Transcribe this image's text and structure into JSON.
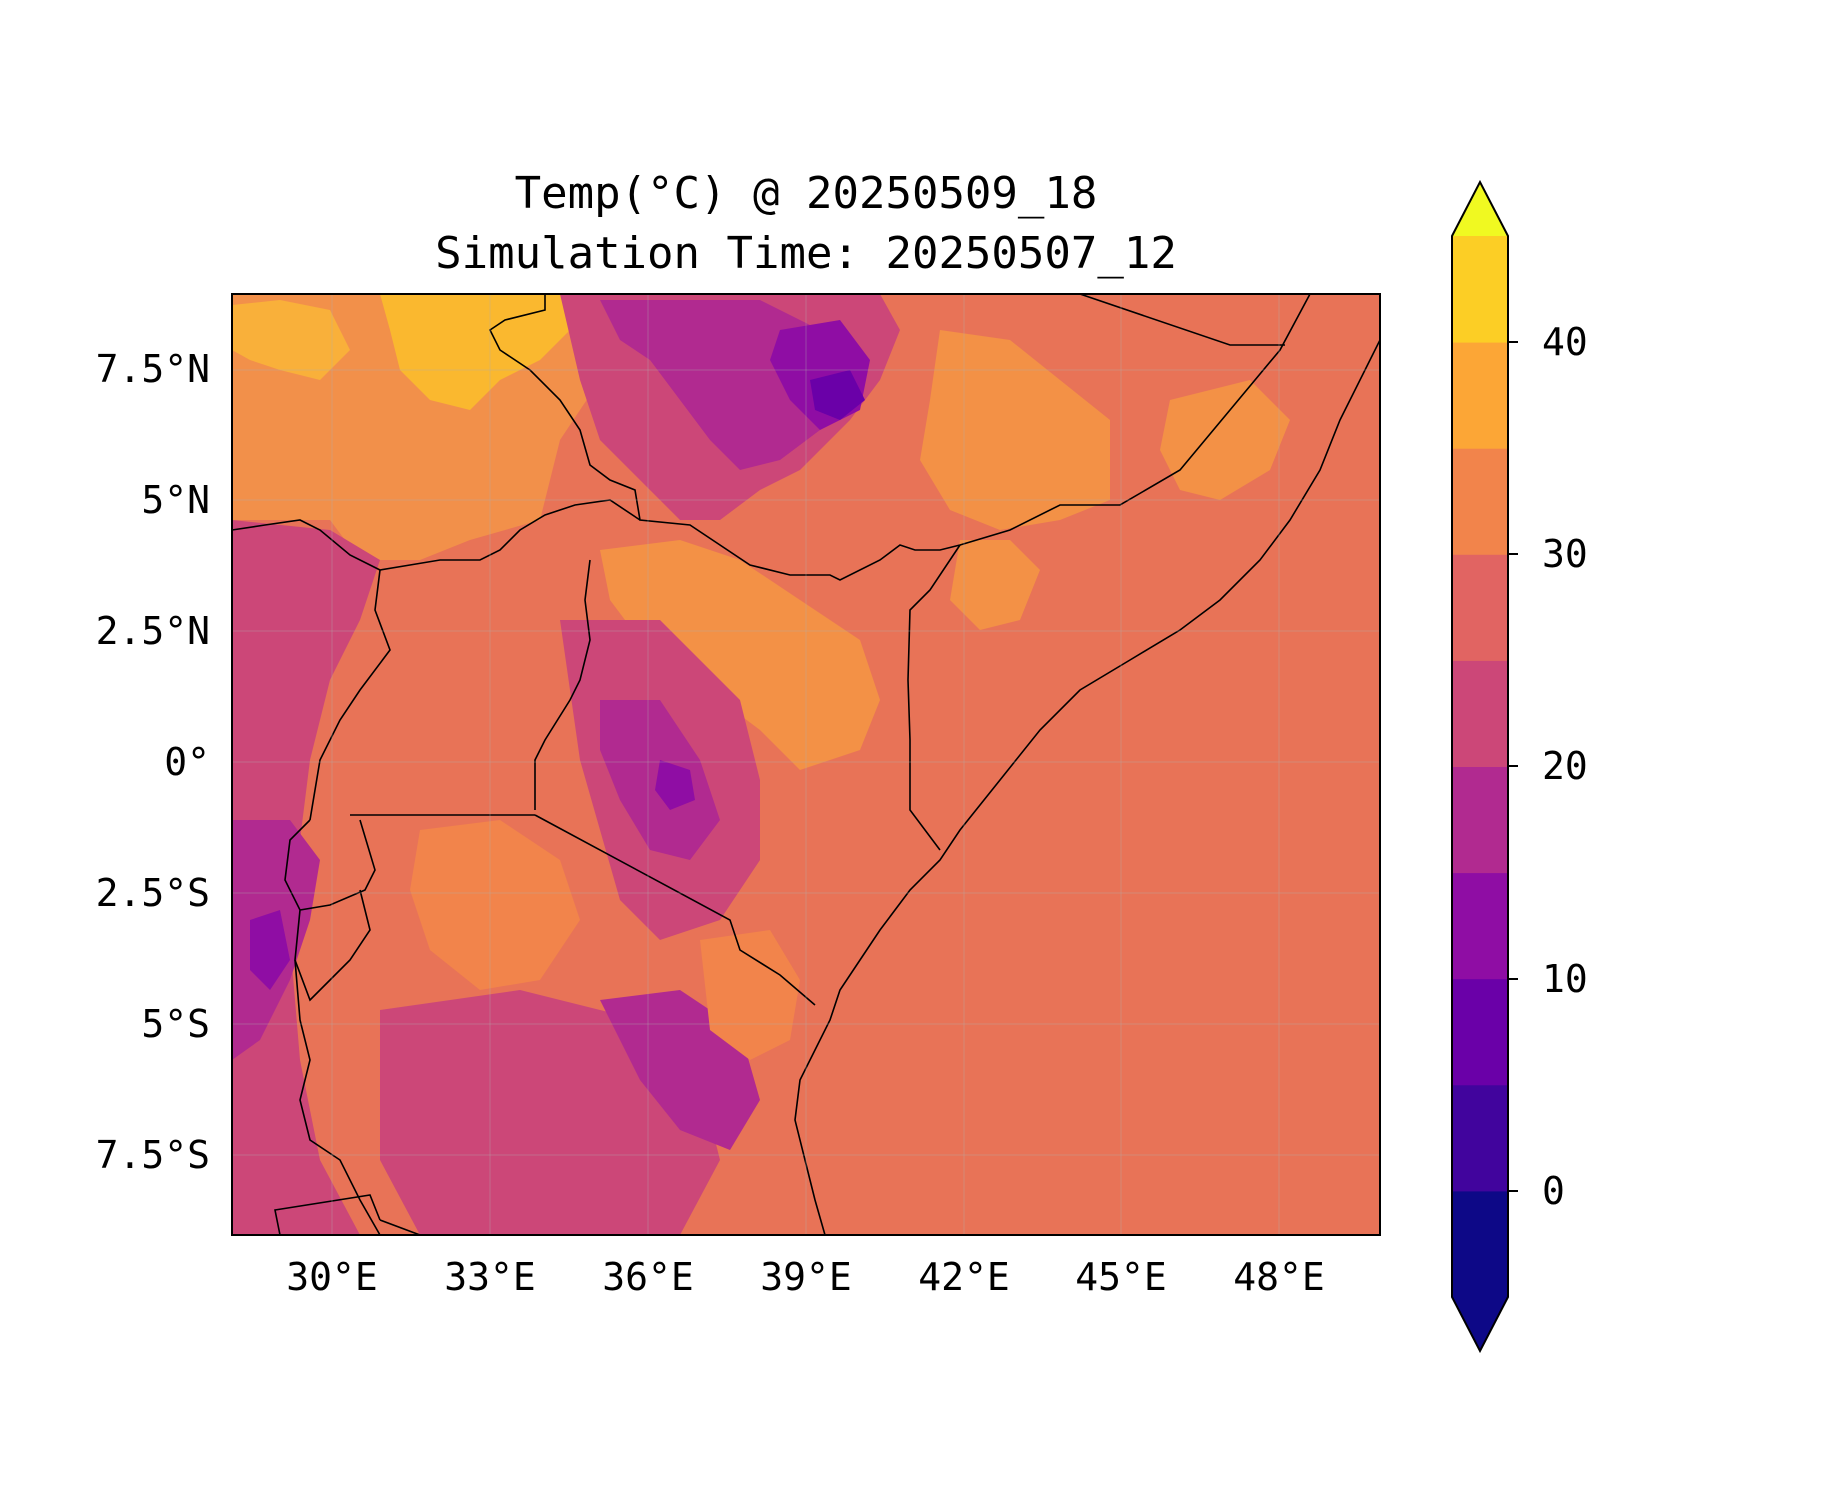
{
  "title": {
    "line1": "Temp(°C) @ 20250509_18",
    "line2": "Simulation Time: 20250507_12"
  },
  "map": {
    "region": "East Africa",
    "lon_range": [
      28,
      50.5
    ],
    "lat_range": [
      -9,
      9
    ],
    "x_ticks": [
      "30°E",
      "33°E",
      "36°E",
      "39°E",
      "42°E",
      "45°E",
      "48°E"
    ],
    "y_ticks": [
      "7.5°N",
      "5°N",
      "2.5°N",
      "0°",
      "2.5°S",
      "5°S",
      "7.5°S"
    ],
    "grid": true,
    "borders": true
  },
  "colorbar": {
    "ticks": [
      "40",
      "30",
      "20",
      "10",
      "0"
    ],
    "levels": [
      -5,
      0,
      5,
      10,
      15,
      20,
      25,
      30,
      35,
      40,
      45
    ],
    "extend": "both",
    "colors": [
      "#0d0887",
      "#41049d",
      "#6a00a8",
      "#8f0da4",
      "#b12a90",
      "#cc4778",
      "#e16462",
      "#f2844b",
      "#fca636",
      "#fcce25",
      "#f0f921"
    ],
    "under_color": "#0d0887",
    "over_color": "#f0f921"
  },
  "colors": {
    "ocean_base": "#e87357",
    "land_base": "#e8745a"
  }
}
